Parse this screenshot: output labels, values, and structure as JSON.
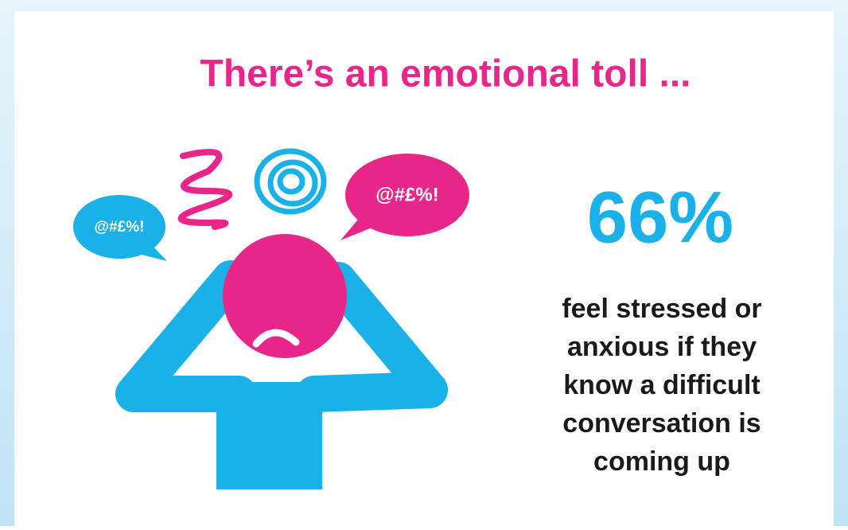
{
  "title": "There’s an emotional toll ...",
  "bubbles": [
    "@#£%!",
    "@#£%!"
  ],
  "stat": {
    "value": "66%",
    "description": [
      "feel stressed or",
      "anxious if they",
      "know a difficult",
      "conversation is",
      "coming up"
    ]
  }
}
